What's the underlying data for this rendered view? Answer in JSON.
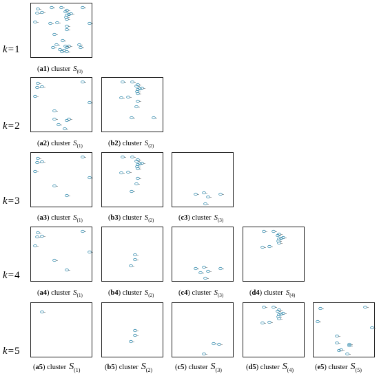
{
  "row_labels": [
    {
      "k": "k",
      "eq": "=",
      "n": "1"
    },
    {
      "k": "k",
      "eq": "=",
      "n": "2"
    },
    {
      "k": "k",
      "eq": "=",
      "n": "3"
    },
    {
      "k": "k",
      "eq": "=",
      "n": "4"
    },
    {
      "k": "k",
      "eq": "=",
      "n": "5"
    }
  ],
  "colors": {
    "marker": "#3a8fb0",
    "frame": "#222222"
  },
  "panels": [
    {
      "id": "a1",
      "caption": {
        "open": "(",
        "tag": "a1",
        "close": ")",
        "word": "cluster",
        "sym": "S",
        "sub": "(0)"
      }
    },
    {
      "id": "a2",
      "caption": {
        "open": "(",
        "tag": "a2",
        "close": ")",
        "word": "cluster",
        "sym": "S",
        "sub": "(1)"
      }
    },
    {
      "id": "b2",
      "caption": {
        "open": "(",
        "tag": "b2",
        "close": ")",
        "word": "cluster",
        "sym": "S",
        "sub": "(2)"
      }
    },
    {
      "id": "a3",
      "caption": {
        "open": "(",
        "tag": "a3",
        "close": ")",
        "word": "cluster",
        "sym": "S",
        "sub": "(1)"
      }
    },
    {
      "id": "b3",
      "caption": {
        "open": "(",
        "tag": "b3",
        "close": ")",
        "word": "cluster",
        "sym": "S",
        "sub": "(2)"
      }
    },
    {
      "id": "c3",
      "caption": {
        "open": "(",
        "tag": "c3",
        "close": ")",
        "word": "cluster",
        "sym": "S",
        "sub": "(3)"
      }
    },
    {
      "id": "a4",
      "caption": {
        "open": "(",
        "tag": "a4",
        "close": ")",
        "word": "cluster",
        "sym": "S",
        "sub": "(1)"
      }
    },
    {
      "id": "b4",
      "caption": {
        "open": "(",
        "tag": "b4",
        "close": ")",
        "word": "cluster",
        "sym": "S",
        "sub": "(2)"
      }
    },
    {
      "id": "c4",
      "caption": {
        "open": "(",
        "tag": "c4",
        "close": ")",
        "word": "cluster",
        "sym": "S",
        "sub": "(3)"
      }
    },
    {
      "id": "d4",
      "caption": {
        "open": "(",
        "tag": "d4",
        "close": ")",
        "word": "cluster",
        "sym": "S",
        "sub": "(4)"
      }
    },
    {
      "id": "a5",
      "caption": {
        "open": "(",
        "tag": "a5",
        "close": ")",
        "word": "cluster",
        "sym": "S",
        "sub": "(1)"
      }
    },
    {
      "id": "b5",
      "caption": {
        "open": "(",
        "tag": "b5",
        "close": ")",
        "word": "cluster",
        "sym": "S",
        "sub": "(2)"
      }
    },
    {
      "id": "c5",
      "caption": {
        "open": "(",
        "tag": "c5",
        "close": ")",
        "word": "cluster",
        "sym": "S",
        "sub": "(3)"
      }
    },
    {
      "id": "d5",
      "caption": {
        "open": "(",
        "tag": "d5",
        "close": ")",
        "word": "cluster",
        "sym": "S",
        "sub": "(4)"
      }
    },
    {
      "id": "e5",
      "caption": {
        "open": "(",
        "tag": "e5",
        "close": ")",
        "word": "cluster",
        "sym": "S",
        "sub": "(5)"
      }
    }
  ]
}
